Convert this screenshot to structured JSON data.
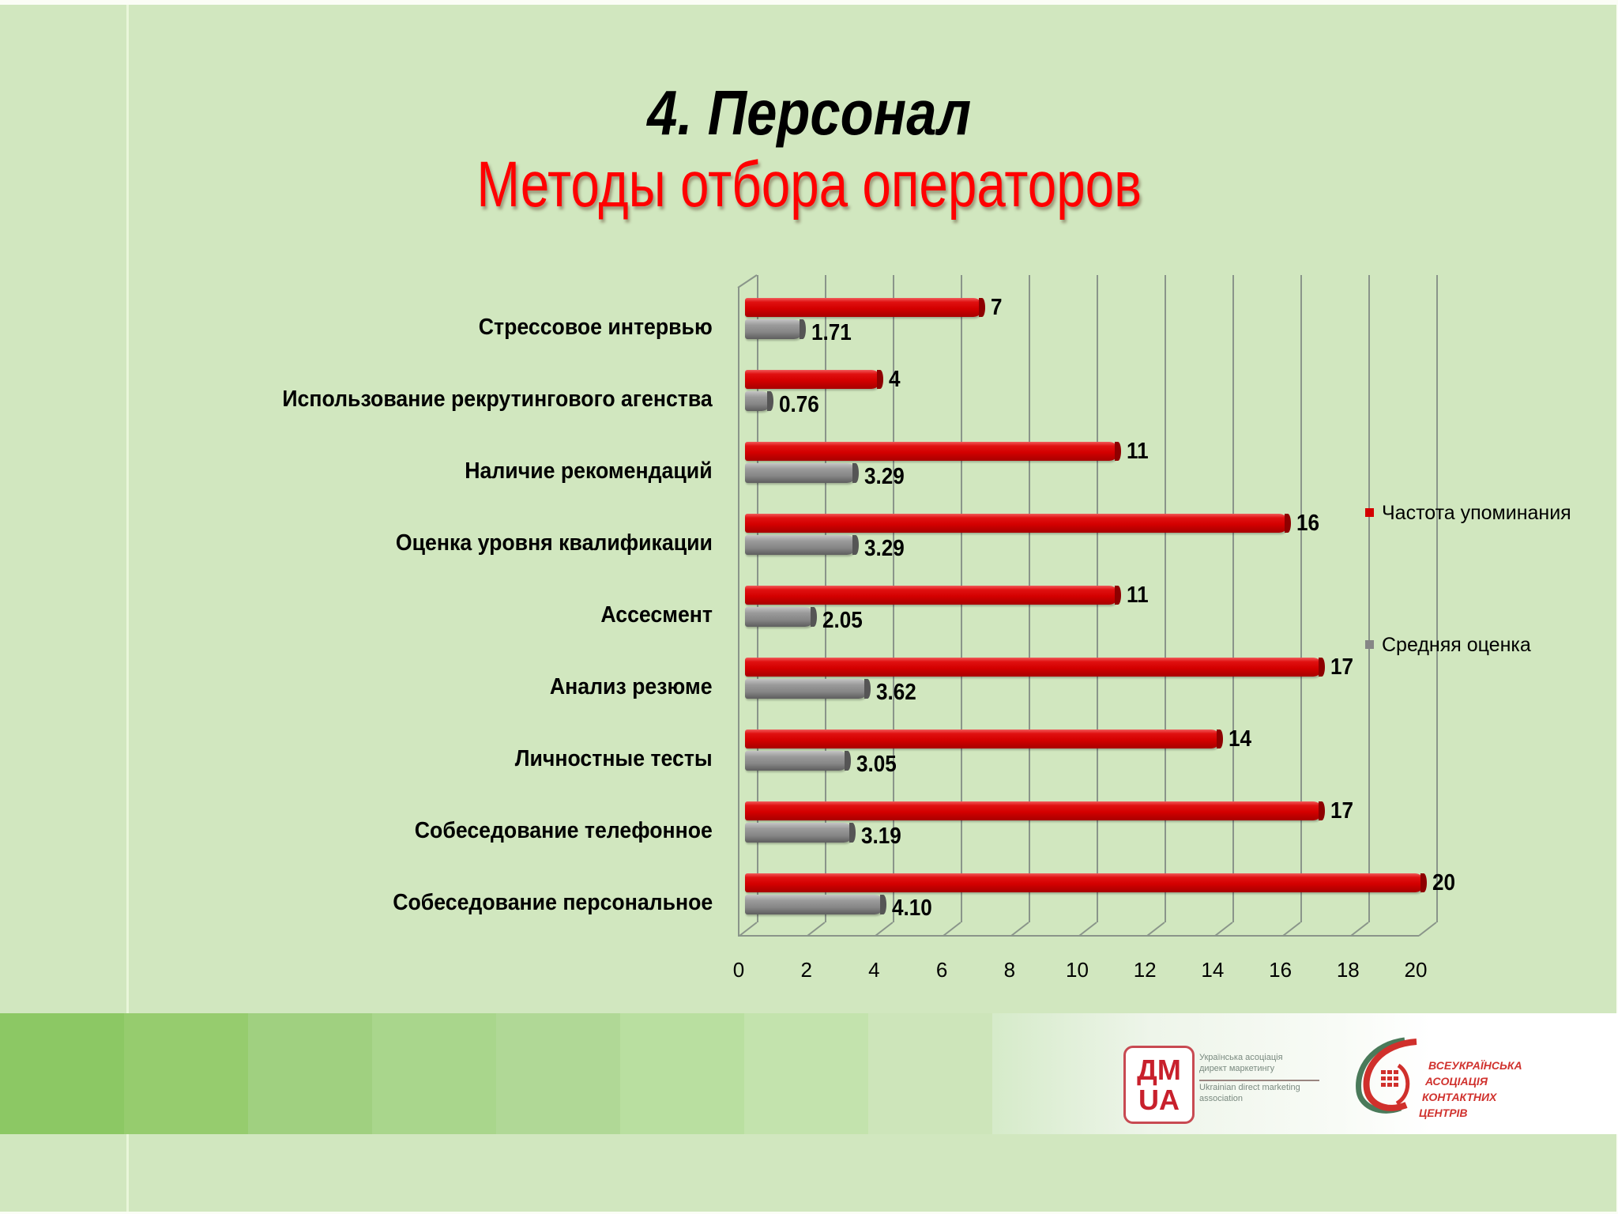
{
  "slide": {
    "title": "4. Персонал",
    "subtitle": "Методы отбора операторов"
  },
  "colors": {
    "background": "#d1e7bf",
    "series_frequency": "#d40000",
    "series_score": "#868686",
    "subtitle": "#ff0000"
  },
  "chart_data": {
    "type": "bar",
    "orientation": "horizontal",
    "title": "Методы отбора операторов",
    "categories": [
      "Стрессовое интервью",
      "Использование рекрутингового агенства",
      "Наличие рекомендаций",
      "Оценка уровня квалификации",
      "Ассесмент",
      "Анализ резюме",
      "Личностные тесты",
      "Собеседование телефонное",
      "Собеседование персональное"
    ],
    "series": [
      {
        "name": "Частота упоминания",
        "color": "#d40000",
        "values": [
          7,
          4,
          11,
          16,
          11,
          17,
          14,
          17,
          20
        ],
        "labels": [
          "7",
          "4",
          "11",
          "16",
          "11",
          "17",
          "14",
          "17",
          "20"
        ]
      },
      {
        "name": "Средняя оценка",
        "color": "#868686",
        "values": [
          1.71,
          0.76,
          3.29,
          3.29,
          2.05,
          3.62,
          3.05,
          3.19,
          4.1
        ],
        "labels": [
          "1.71",
          "0.76",
          "3.29",
          "3.29",
          "2.05",
          "3.62",
          "3.05",
          "3.19",
          "4.10"
        ]
      }
    ],
    "xlabel": "",
    "ylabel": "",
    "xlim": [
      0,
      20
    ],
    "x_ticks": [
      "0",
      "2",
      "4",
      "6",
      "8",
      "10",
      "12",
      "14",
      "16",
      "18",
      "20"
    ],
    "grid": true,
    "legend_position": "right",
    "style": "3d-cylinder"
  },
  "legend": {
    "items": [
      {
        "label": "Частота упоминания",
        "color": "#d40000"
      },
      {
        "label": "Средняя оценка",
        "color": "#868686"
      }
    ]
  },
  "footer": {
    "logo1": {
      "mark_top": "ДМ",
      "mark_bottom": "UA",
      "line1": "Українська асоціація",
      "line2": "директ маркетингу",
      "line3": "Ukrainian direct marketing",
      "line4": "association"
    },
    "logo2": {
      "line1": "ВСЕУКРАЇНСЬКА",
      "line2": "АСОЦІАЦІЯ",
      "line3": "КОНТАКТНИХ",
      "line4": "ЦЕНТРІВ"
    },
    "band_colors": [
      "#8cc864",
      "#96cc6e",
      "#a0d080",
      "#a9d68c",
      "#b0d896",
      "#b9dfa0",
      "#c3e3ad",
      "#cde5ba",
      "#d6ebca"
    ]
  }
}
